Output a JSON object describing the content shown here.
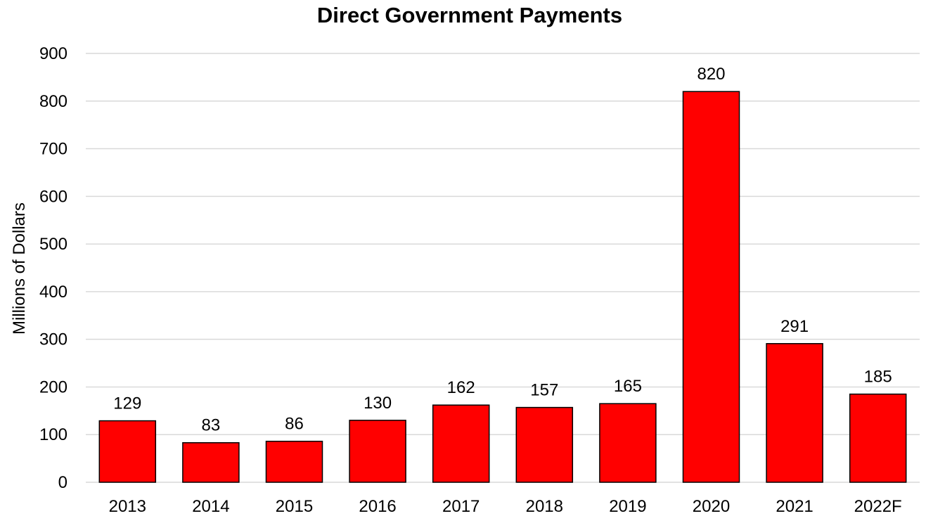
{
  "chart_data": {
    "type": "bar",
    "title": "Direct Government Payments",
    "xlabel": "",
    "ylabel": "Millions of Dollars",
    "categories": [
      "2013",
      "2014",
      "2015",
      "2016",
      "2017",
      "2018",
      "2019",
      "2020",
      "2021",
      "2022F"
    ],
    "values": [
      129,
      83,
      86,
      130,
      162,
      157,
      165,
      820,
      291,
      185
    ],
    "data_labels": [
      "129",
      "83",
      "86",
      "130",
      "162",
      "157",
      "165",
      "820",
      "291",
      "185"
    ],
    "ylim": [
      0,
      900
    ],
    "yticks": [
      0,
      100,
      200,
      300,
      400,
      500,
      600,
      700,
      800,
      900
    ],
    "ytick_labels": [
      "0",
      "100",
      "200",
      "300",
      "400",
      "500",
      "600",
      "700",
      "800",
      "900"
    ],
    "grid": "horizontal",
    "legend": "none",
    "bar_color": "#ff0000",
    "bar_edge_color": "#000000",
    "grid_color": "#d9d9d9"
  }
}
